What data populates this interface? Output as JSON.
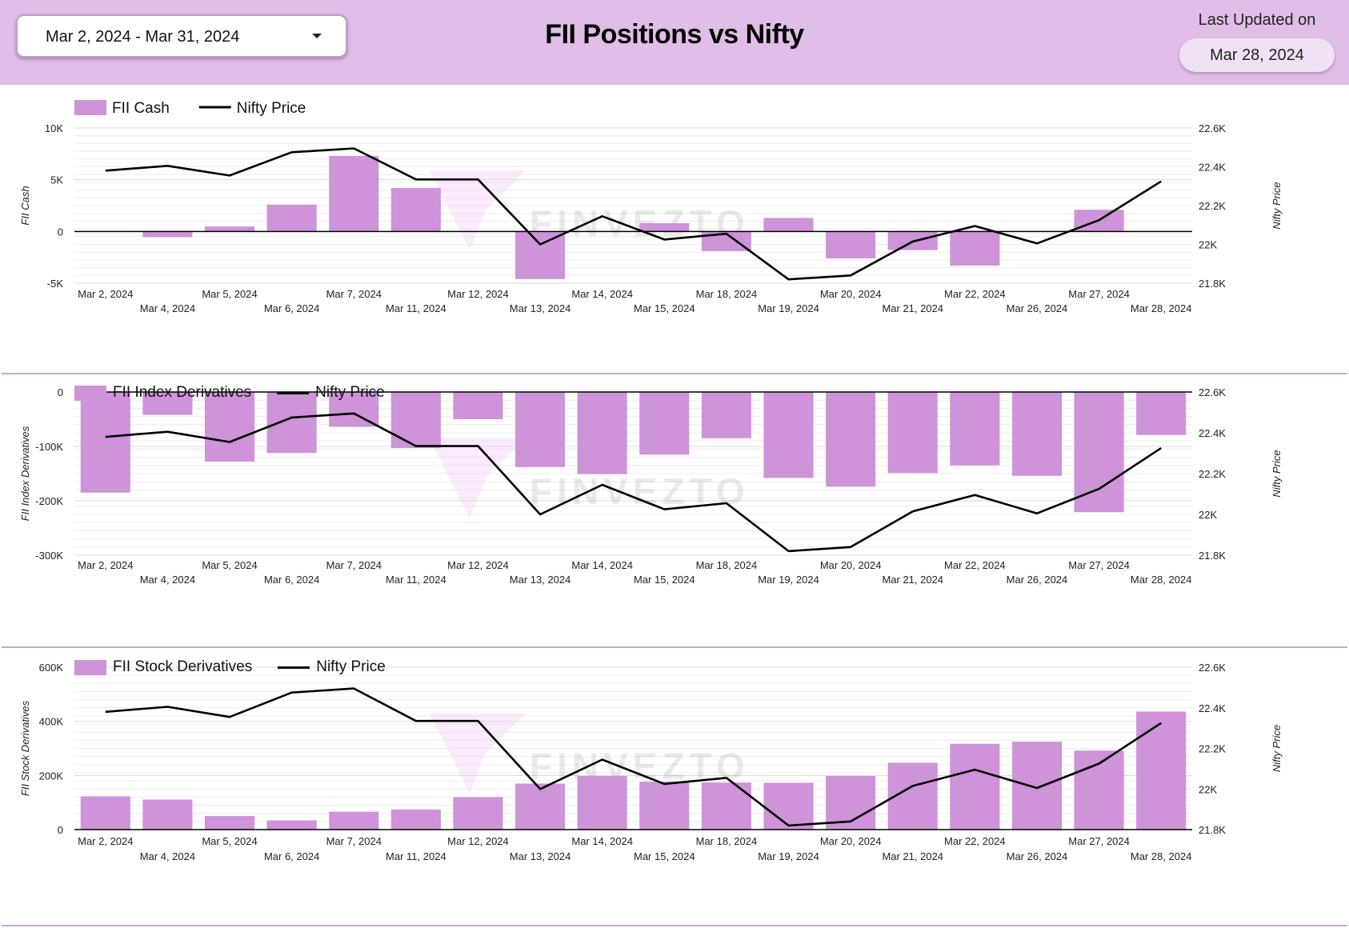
{
  "header": {
    "date_range": "Mar 2, 2024 - Mar 31, 2024",
    "title": "FII Positions vs Nifty",
    "last_updated_label": "Last Updated on",
    "last_updated_value": "Mar 28, 2024"
  },
  "watermark": "FINVEZTO",
  "colors": {
    "bar": "#ce93d8",
    "line": "#000000",
    "header_bg": "#e1bee7"
  },
  "chart_data": [
    {
      "type": "bar",
      "title": "",
      "legend_bar": "FII Cash",
      "legend_line": "Nifty Price",
      "ylabel": "FII Cash",
      "y2label": "Nifty Price",
      "ylim": [
        -5000,
        10000
      ],
      "yticks": [
        10000,
        5000,
        0,
        -5000
      ],
      "ytick_labels": [
        "10K",
        "5K",
        "0",
        "-5K"
      ],
      "y2lim": [
        21800,
        22600
      ],
      "y2ticks": [
        22600,
        22400,
        22200,
        22000,
        21800
      ],
      "y2tick_labels": [
        "22.6K",
        "22.4K",
        "22.2K",
        "22K",
        "21.8K"
      ],
      "categories": [
        "Mar 2, 2024",
        "Mar 4, 2024",
        "Mar 5, 2024",
        "Mar 6, 2024",
        "Mar 7, 2024",
        "Mar 11, 2024",
        "Mar 12, 2024",
        "Mar 13, 2024",
        "Mar 14, 2024",
        "Mar 15, 2024",
        "Mar 18, 2024",
        "Mar 19, 2024",
        "Mar 20, 2024",
        "Mar 21, 2024",
        "Mar 22, 2024",
        "Mar 26, 2024",
        "Mar 27, 2024",
        "Mar 28, 2024"
      ],
      "series": [
        {
          "name": "FII Cash",
          "type": "bar",
          "values": [
            0,
            -550,
            480,
            2600,
            7300,
            4200,
            -20,
            -4600,
            0,
            800,
            -1900,
            1300,
            -2600,
            -1800,
            -3300,
            0,
            2100,
            0
          ]
        },
        {
          "name": "Nifty Price",
          "type": "line",
          "values": [
            22380,
            22405,
            22355,
            22475,
            22495,
            22335,
            22335,
            22000,
            22145,
            22025,
            22055,
            21820,
            21840,
            22015,
            22095,
            22005,
            22125,
            22325
          ]
        }
      ]
    },
    {
      "type": "bar",
      "title": "",
      "legend_bar": "FII Index Derivatives",
      "legend_line": "Nifty Price",
      "ylabel": "FII Index Derivatives",
      "y2label": "Nifty Price",
      "ylim": [
        -300000,
        0
      ],
      "yticks": [
        0,
        -100000,
        -200000,
        -300000
      ],
      "ytick_labels": [
        "0",
        "-100K",
        "-200K",
        "-300K"
      ],
      "y2lim": [
        21800,
        22600
      ],
      "y2ticks": [
        22600,
        22400,
        22200,
        22000,
        21800
      ],
      "y2tick_labels": [
        "22.6K",
        "22.4K",
        "22.2K",
        "22K",
        "21.8K"
      ],
      "categories": [
        "Mar 2, 2024",
        "Mar 4, 2024",
        "Mar 5, 2024",
        "Mar 6, 2024",
        "Mar 7, 2024",
        "Mar 11, 2024",
        "Mar 12, 2024",
        "Mar 13, 2024",
        "Mar 14, 2024",
        "Mar 15, 2024",
        "Mar 18, 2024",
        "Mar 19, 2024",
        "Mar 20, 2024",
        "Mar 21, 2024",
        "Mar 22, 2024",
        "Mar 26, 2024",
        "Mar 27, 2024",
        "Mar 28, 2024"
      ],
      "series": [
        {
          "name": "FII Index Derivatives",
          "type": "bar",
          "values": [
            -185000,
            -42000,
            -128000,
            -112000,
            -64000,
            -103000,
            -50000,
            -138000,
            -151000,
            -115000,
            -85000,
            -158000,
            -174000,
            -149000,
            -135000,
            -154000,
            -221000,
            -79000
          ]
        },
        {
          "name": "Nifty Price",
          "type": "line",
          "values": [
            22380,
            22405,
            22355,
            22475,
            22495,
            22335,
            22335,
            22000,
            22145,
            22025,
            22055,
            21820,
            21840,
            22015,
            22095,
            22005,
            22125,
            22325
          ]
        }
      ]
    },
    {
      "type": "bar",
      "title": "",
      "legend_bar": "FII Stock Derivatives",
      "legend_line": "Nifty Price",
      "ylabel": "FII Stock Derivatives",
      "y2label": "Nifty Price",
      "ylim": [
        0,
        600000
      ],
      "yticks": [
        600000,
        400000,
        200000,
        0
      ],
      "ytick_labels": [
        "600K",
        "400K",
        "200K",
        "0"
      ],
      "y2lim": [
        21800,
        22600
      ],
      "y2ticks": [
        22600,
        22400,
        22200,
        22000,
        21800
      ],
      "y2tick_labels": [
        "22.6K",
        "22.4K",
        "22.2K",
        "22K",
        "21.8K"
      ],
      "categories": [
        "Mar 2, 2024",
        "Mar 4, 2024",
        "Mar 5, 2024",
        "Mar 6, 2024",
        "Mar 7, 2024",
        "Mar 11, 2024",
        "Mar 12, 2024",
        "Mar 13, 2024",
        "Mar 14, 2024",
        "Mar 15, 2024",
        "Mar 18, 2024",
        "Mar 19, 2024",
        "Mar 20, 2024",
        "Mar 21, 2024",
        "Mar 22, 2024",
        "Mar 26, 2024",
        "Mar 27, 2024",
        "Mar 28, 2024"
      ],
      "series": [
        {
          "name": "FII Stock Derivatives",
          "type": "bar",
          "values": [
            123000,
            111000,
            50000,
            34000,
            66000,
            74000,
            120000,
            170000,
            198000,
            177000,
            174000,
            173000,
            198000,
            247000,
            317000,
            325000,
            292000,
            436000
          ]
        },
        {
          "name": "Nifty Price",
          "type": "line",
          "values": [
            22380,
            22405,
            22355,
            22475,
            22495,
            22335,
            22335,
            22000,
            22145,
            22025,
            22055,
            21820,
            21840,
            22015,
            22095,
            22005,
            22125,
            22325
          ]
        }
      ]
    }
  ]
}
